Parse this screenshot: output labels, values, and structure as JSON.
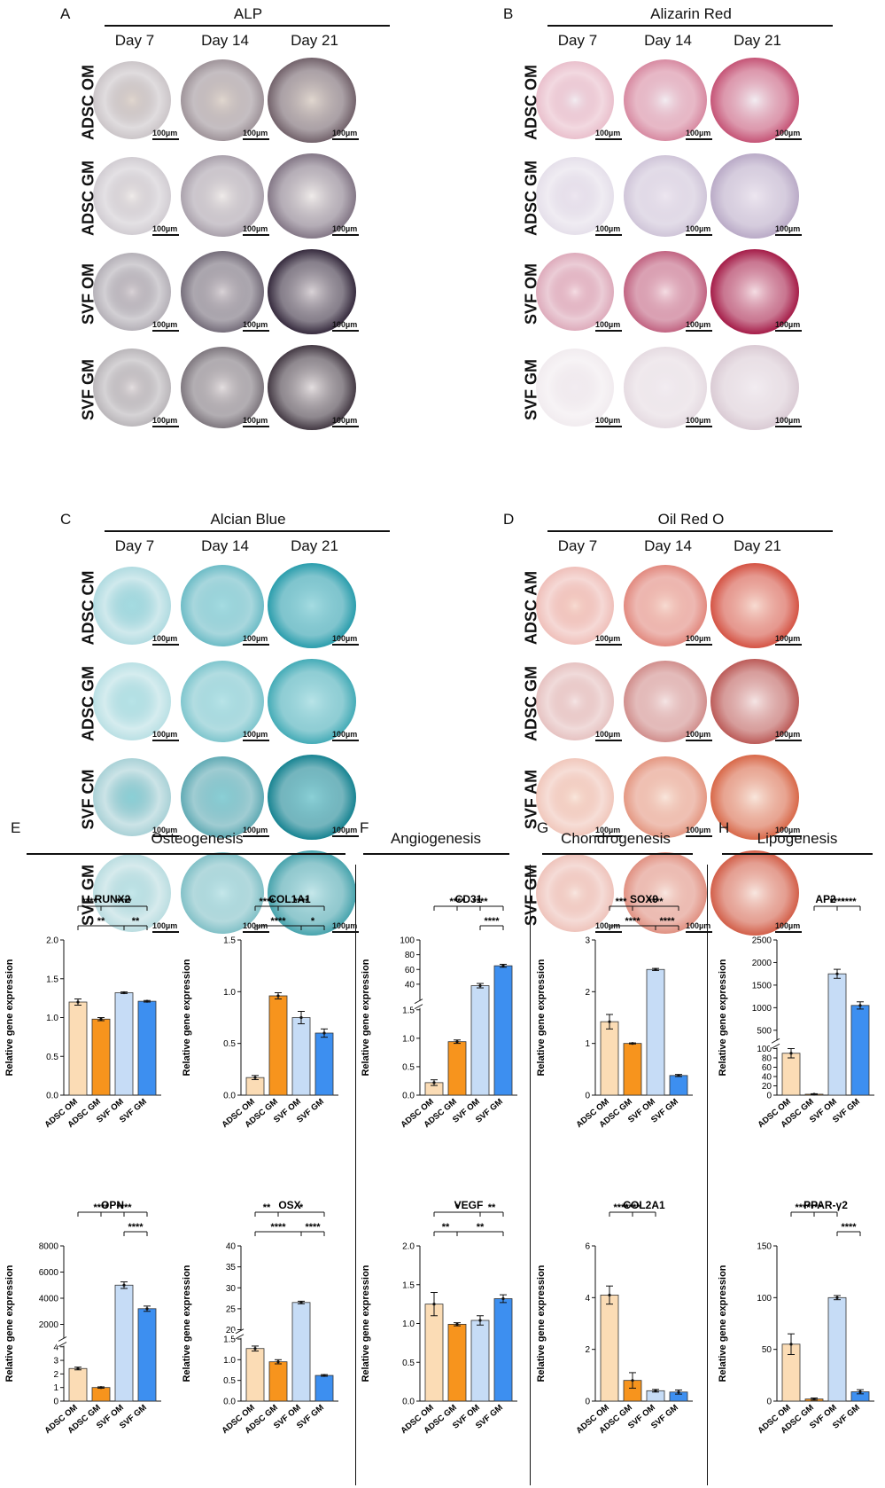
{
  "panels": [
    {
      "letter": "A",
      "title": "ALP",
      "days": [
        "Day 7",
        "Day 14",
        "Day 21"
      ],
      "rows": [
        "ADSC OM",
        "ADSC GM",
        "SVF OM",
        "SVF GM"
      ],
      "scale": "100µm",
      "style": "alp"
    },
    {
      "letter": "B",
      "title": "Alizarin Red",
      "days": [
        "Day 7",
        "Day 14",
        "Day 21"
      ],
      "rows": [
        "ADSC OM",
        "ADSC GM",
        "SVF OM",
        "SVF GM"
      ],
      "scale": "100µm",
      "style": "ars"
    },
    {
      "letter": "C",
      "title": "Alcian Blue",
      "days": [
        "Day 7",
        "Day 14",
        "Day 21"
      ],
      "rows": [
        "ADSC CM",
        "ADSC GM",
        "SVF CM",
        "SVF GM"
      ],
      "scale": "100µm",
      "style": "ab"
    },
    {
      "letter": "D",
      "title": "Oil Red O",
      "days": [
        "Day 7",
        "Day 14",
        "Day 21"
      ],
      "rows": [
        "ADSC AM",
        "ADSC GM",
        "SVF AM",
        "SVF GM"
      ],
      "scale": "100µm",
      "style": "oro"
    }
  ],
  "sections": [
    {
      "letter": "E",
      "title": "Osteogenesis"
    },
    {
      "letter": "F",
      "title": "Angiogenesis"
    },
    {
      "letter": "G",
      "title": "Chondrogenesis"
    },
    {
      "letter": "H",
      "title": "Lipogenesis"
    }
  ],
  "colors": {
    "adsc_om": "#fbdcb5",
    "adsc_gm": "#f7941d",
    "svf_om": "#c6dcf6",
    "svf_gm": "#3d8ff0",
    "ink": "#111111"
  },
  "chart_data": [
    {
      "type": "bar",
      "title": "RUNX2",
      "ylabel": "Relative gene expression",
      "categories": [
        "ADSC OM",
        "ADSC GM",
        "SVF OM",
        "SVF GM"
      ],
      "values": [
        1.2,
        0.98,
        1.32,
        1.21
      ],
      "errors": [
        0.04,
        0.02,
        0.01,
        0.01
      ],
      "ylim": [
        0,
        2.0
      ],
      "ticks": [
        "0.0",
        "0.5",
        "1.0",
        "1.5",
        "2.0"
      ],
      "sig": [
        {
          "a": 0,
          "b": 1,
          "label": "****"
        },
        {
          "a": 1,
          "b": 3,
          "label": "****"
        },
        {
          "a": 0,
          "b": 2,
          "label": "**"
        },
        {
          "a": 2,
          "b": 3,
          "label": "**"
        }
      ]
    },
    {
      "type": "bar",
      "title": "COL1A1",
      "ylabel": "Relative gene expression",
      "categories": [
        "ADSC OM",
        "ADSC GM",
        "SVF OM",
        "SVF GM"
      ],
      "values": [
        0.17,
        0.96,
        0.75,
        0.6
      ],
      "errors": [
        0.02,
        0.03,
        0.06,
        0.04
      ],
      "ylim": [
        0,
        1.5
      ],
      "ticks": [
        "0.0",
        "0.5",
        "1.0",
        "1.5"
      ],
      "sig": [
        {
          "a": 0,
          "b": 1,
          "label": "****"
        },
        {
          "a": 1,
          "b": 3,
          "label": "****"
        },
        {
          "a": 0,
          "b": 2,
          "label": "****"
        },
        {
          "a": 2,
          "b": 3,
          "label": "*"
        }
      ]
    },
    {
      "type": "bar",
      "title": "CD31",
      "ylabel": "Relative gene expression",
      "categories": [
        "ADSC OM",
        "ADSC GM",
        "SVF OM",
        "SVF GM"
      ],
      "values": [
        0.22,
        0.94,
        38,
        65
      ],
      "errors": [
        0.05,
        0.03,
        3,
        2
      ],
      "ticks": [
        "0.0",
        "0.5",
        "1.0",
        "1.5",
        "40",
        "60",
        "80",
        "100"
      ],
      "sig": [
        {
          "a": 1,
          "b": 3,
          "label": "****"
        },
        {
          "a": 0,
          "b": 2,
          "label": "****"
        },
        {
          "a": 2,
          "b": 3,
          "label": "****"
        }
      ]
    },
    {
      "type": "bar",
      "title": "SOX9",
      "ylabel": "Relative gene expression",
      "categories": [
        "ADSC OM",
        "ADSC GM",
        "SVF OM",
        "SVF GM"
      ],
      "values": [
        1.42,
        1.0,
        2.43,
        0.38
      ],
      "errors": [
        0.14,
        0.01,
        0.02,
        0.02
      ],
      "ylim": [
        0,
        3
      ],
      "ticks": [
        "0",
        "1",
        "2",
        "3"
      ],
      "sig": [
        {
          "a": 0,
          "b": 1,
          "label": "***"
        },
        {
          "a": 1,
          "b": 3,
          "label": "****"
        },
        {
          "a": 0,
          "b": 2,
          "label": "****"
        },
        {
          "a": 2,
          "b": 3,
          "label": "****"
        }
      ]
    },
    {
      "type": "bar",
      "title": "AP2",
      "ylabel": "Relative gene expression",
      "categories": [
        "ADSC OM",
        "ADSC GM",
        "SVF OM",
        "SVF GM"
      ],
      "values": [
        90,
        2,
        1750,
        1050
      ],
      "errors": [
        10,
        1,
        100,
        80
      ],
      "ticks": [
        "0",
        "20",
        "40",
        "60",
        "80",
        "100",
        "500",
        "1000",
        "1500",
        "2000",
        "2500"
      ],
      "sig": [
        {
          "a": 1,
          "b": 3,
          "label": "****"
        },
        {
          "a": 2,
          "b": 3,
          "label": "****"
        }
      ]
    },
    {
      "type": "bar",
      "title": "OPN",
      "ylabel": "Relative gene expression",
      "categories": [
        "ADSC OM",
        "ADSC GM",
        "SVF OM",
        "SVF GM"
      ],
      "values": [
        2.4,
        1.0,
        5000,
        3200
      ],
      "errors": [
        0.1,
        0.05,
        250,
        200
      ],
      "ticks": [
        "0",
        "1",
        "2",
        "3",
        "4",
        "2000",
        "4000",
        "6000",
        "8000"
      ],
      "sig": [
        {
          "a": 1,
          "b": 3,
          "label": "****"
        },
        {
          "a": 0,
          "b": 2,
          "label": "****"
        },
        {
          "a": 2,
          "b": 3,
          "label": "****"
        }
      ]
    },
    {
      "type": "bar",
      "title": "OSX",
      "ylabel": "Relative gene expression",
      "categories": [
        "ADSC OM",
        "ADSC GM",
        "SVF OM",
        "SVF GM"
      ],
      "values": [
        1.27,
        0.95,
        26.5,
        0.62
      ],
      "errors": [
        0.06,
        0.05,
        0.3,
        0.02
      ],
      "ticks": [
        "0.0",
        "0.5",
        "1.0",
        "1.5",
        "20",
        "25",
        "30",
        "35",
        "40"
      ],
      "sig": [
        {
          "a": 0,
          "b": 1,
          "label": "**"
        },
        {
          "a": 1,
          "b": 3,
          "label": "*"
        },
        {
          "a": 0,
          "b": 2,
          "label": "****"
        },
        {
          "a": 2,
          "b": 3,
          "label": "****"
        }
      ]
    },
    {
      "type": "bar",
      "title": "VEGF",
      "ylabel": "Relative gene expression",
      "categories": [
        "ADSC OM",
        "ADSC GM",
        "SVF OM",
        "SVF GM"
      ],
      "values": [
        1.25,
        0.99,
        1.04,
        1.32
      ],
      "errors": [
        0.15,
        0.02,
        0.06,
        0.05
      ],
      "ylim": [
        0,
        2.0
      ],
      "ticks": [
        "0.0",
        "0.5",
        "1.0",
        "1.5",
        "2.0"
      ],
      "sig": [
        {
          "a": 0,
          "b": 2,
          "label": "*"
        },
        {
          "a": 2,
          "b": 3,
          "label": "**"
        },
        {
          "a": 0,
          "b": 1,
          "label": "**"
        },
        {
          "a": 1,
          "b": 3,
          "label": "**"
        }
      ]
    },
    {
      "type": "bar",
      "title": "COL2A1",
      "ylabel": "Relative gene expression",
      "categories": [
        "ADSC OM",
        "ADSC GM",
        "SVF OM",
        "SVF GM"
      ],
      "values": [
        4.1,
        0.8,
        0.4,
        0.35
      ],
      "errors": [
        0.35,
        0.3,
        0.05,
        0.08
      ],
      "ylim": [
        0,
        6
      ],
      "ticks": [
        "0",
        "2",
        "4",
        "6"
      ],
      "sig": [
        {
          "a": 0,
          "b": 2,
          "label": "****"
        },
        {
          "a": 0,
          "b": 1,
          "label": "****"
        }
      ]
    },
    {
      "type": "bar",
      "title": "PPAR-γ2",
      "ylabel": "Relative gene expression",
      "categories": [
        "ADSC OM",
        "ADSC GM",
        "SVF OM",
        "SVF GM"
      ],
      "values": [
        55,
        2,
        100,
        9
      ],
      "errors": [
        10,
        1,
        2,
        2
      ],
      "ylim": [
        0,
        150
      ],
      "ticks": [
        "0",
        "50",
        "100",
        "150"
      ],
      "sig": [
        {
          "a": 0,
          "b": 2,
          "label": "****"
        },
        {
          "a": 0,
          "b": 1,
          "label": "****"
        },
        {
          "a": 2,
          "b": 3,
          "label": "****"
        }
      ]
    }
  ]
}
